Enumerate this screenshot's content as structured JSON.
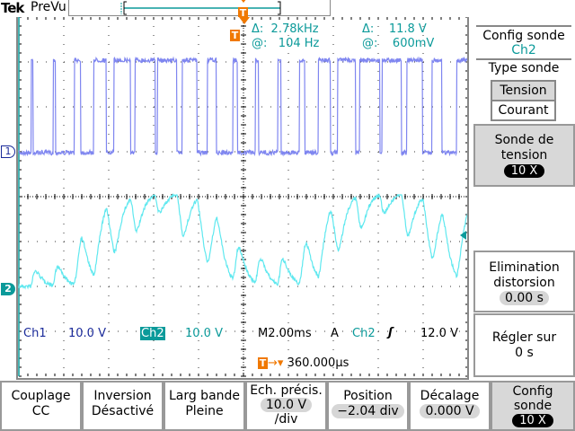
{
  "header": {
    "brand": "Tek",
    "mode": "PreVu"
  },
  "trigger_marker": "T",
  "cursor_readout": {
    "delta_freq_label": "Δ:",
    "delta_freq": "2.78kHz",
    "delta_volt_label": "Δ:",
    "delta_volt": "11.8 V",
    "at_freq_label": "@:",
    "at_freq": "104 Hz",
    "at_volt_label": "@:",
    "at_volt": "600mV"
  },
  "channel_markers": {
    "ch1": "1",
    "ch2": "2"
  },
  "status": {
    "ch1_label": "Ch1",
    "ch1_scale": "10.0 V",
    "ch2_label": "Ch2",
    "ch2_scale": "10.0 V",
    "timebase": "M2.00ms",
    "trigger_mode": "A",
    "trigger_source": "Ch2",
    "trigger_level": "12.0 V",
    "trigger_pos_arrow": "→▾",
    "trigger_position": "360.000µs"
  },
  "side_menu": {
    "title": "Config sonde",
    "channel": "Ch2",
    "type_label": "Type sonde",
    "type_options": [
      "Tension",
      "Courant"
    ],
    "type_selected": 0,
    "probe_line1": "Sonde de",
    "probe_line2": "tension",
    "probe_value": "10 X",
    "deskew_line1": "Elimination",
    "deskew_line2": "distorsion",
    "deskew_value": "0.00 s",
    "set_line1": "Régler sur",
    "set_line2": "0 s"
  },
  "bottom_menu": [
    {
      "l1": "Couplage",
      "l2": "CC"
    },
    {
      "l1": "Inversion",
      "l2": "Désactivé"
    },
    {
      "l1": "Larg bande",
      "l2": "Pleine"
    },
    {
      "l1": "Ech. précis.",
      "pill": "10.0 V",
      "l3": "/div"
    },
    {
      "l1": "Position",
      "pill": "−2.04 div"
    },
    {
      "l1": "Décalage",
      "pill": "0.000 V"
    },
    {
      "l1": "Config",
      "l2": "sonde",
      "bpill": "10 X"
    }
  ],
  "colors": {
    "ch1": "#7f86f0",
    "ch2": "#5fe8ef",
    "accent": "#f07800",
    "teal": "#0b9a9a"
  },
  "waveform": {
    "time_per_div_ms": 2,
    "volts_per_div": 10,
    "ch1_high_v": 20.6,
    "ch2_high_v": 20,
    "ch2_position_div": -2.04,
    "ch1_edges_ms": [
      0.56,
      0.64,
      1.53,
      1.63,
      2.47,
      2.76,
      3.33,
      3.89,
      4.23,
      4.97,
      5.17,
      6.07,
      6.17,
      7.04,
      7.27,
      7.93,
      8.4,
      8.8,
      9.53,
      9.73,
      10.53,
      10.67,
      11.53,
      11.67,
      12.49,
      12.73,
      13.33,
      13.87,
      14.2,
      15.0,
      15.17,
      16.07,
      16.17,
      17.04,
      17.27,
      17.97,
      18.4,
      18.83,
      19.49
    ]
  }
}
